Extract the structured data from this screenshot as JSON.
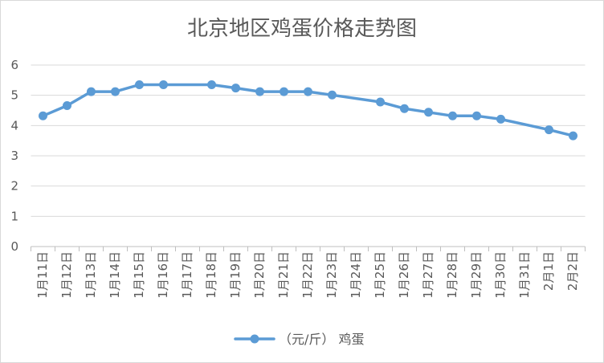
{
  "chart_data": {
    "type": "line",
    "title": "北京地区鸡蛋价格走势图",
    "xlabel": "",
    "ylabel": "",
    "categories": [
      "1月11日",
      "1月12日",
      "1月13日",
      "1月14日",
      "1月15日",
      "1月16日",
      "1月17日",
      "1月18日",
      "1月19日",
      "1月20日",
      "1月21日",
      "1月22日",
      "1月23日",
      "1月24日",
      "1月25日",
      "1月26日",
      "1月27日",
      "1月28日",
      "1月29日",
      "1月30日",
      "1月31日",
      "2月1日",
      "2月2日"
    ],
    "series": [
      {
        "name": "（元/斤） 鸡蛋",
        "color": "#5B9BD5",
        "values": [
          4.32,
          4.66,
          5.12,
          5.12,
          5.35,
          5.35,
          null,
          5.35,
          5.24,
          5.12,
          5.12,
          5.12,
          5.01,
          null,
          4.78,
          4.56,
          4.44,
          4.32,
          4.32,
          4.21,
          null,
          3.86,
          3.66
        ]
      }
    ],
    "ylim": [
      0,
      6
    ],
    "yticks": [
      0,
      1,
      2,
      3,
      4,
      5,
      6
    ],
    "grid": true,
    "legend_position": "bottom"
  }
}
